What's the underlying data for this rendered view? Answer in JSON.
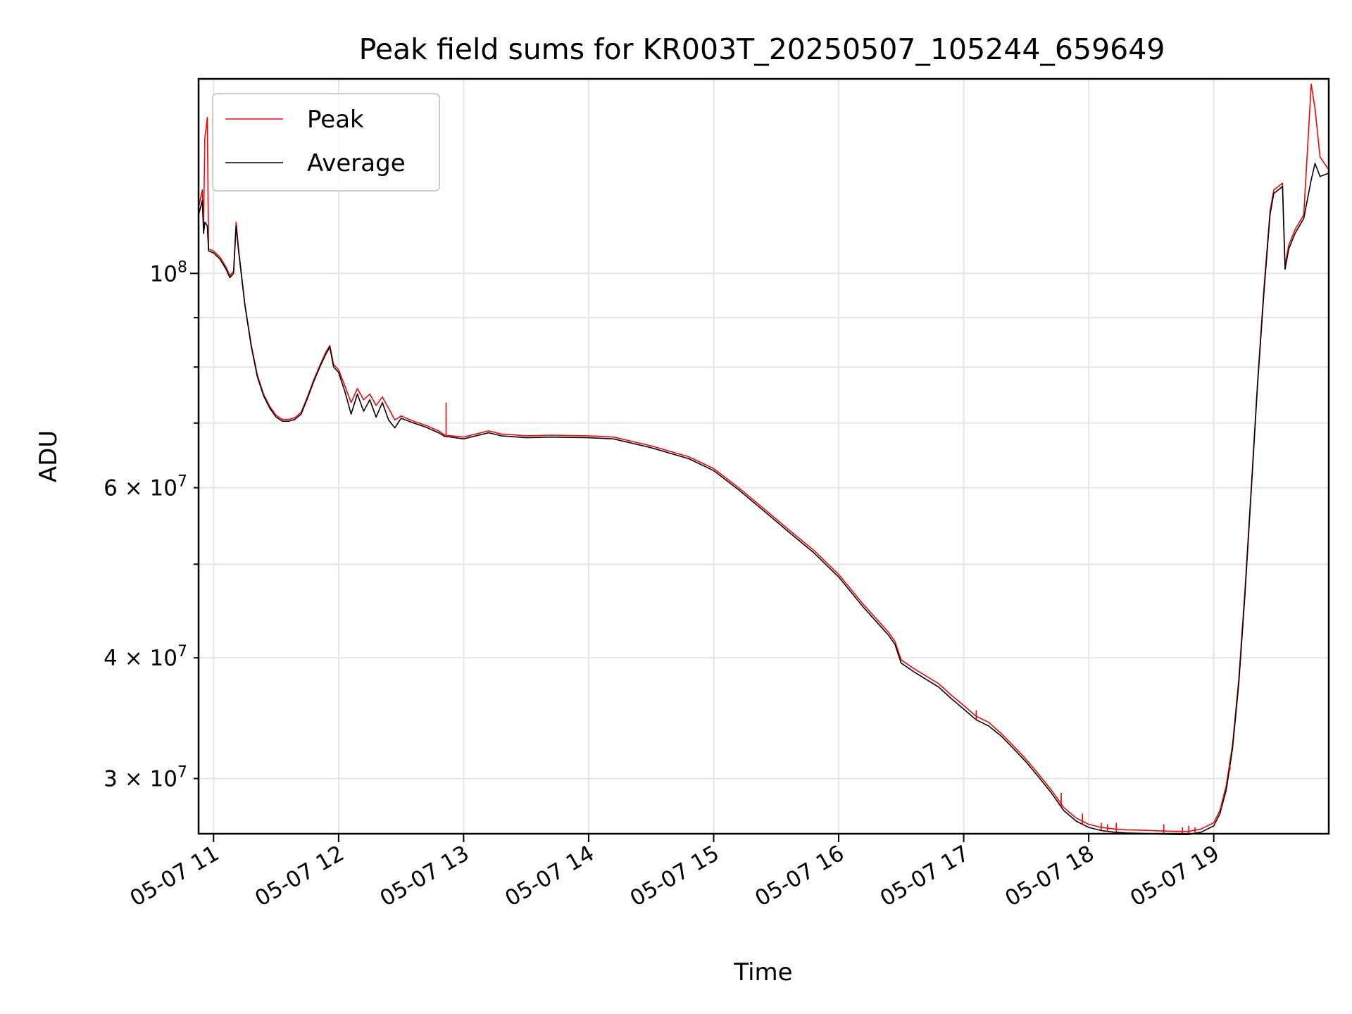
{
  "chart_data": {
    "type": "line",
    "title": "Peak field sums for KR003T_20250507_105244_659649",
    "xlabel": "Time",
    "ylabel": "ADU",
    "yscale": "log",
    "ylim": [
      26300000,
      159000000
    ],
    "xlim": [
      10.88,
      19.92
    ],
    "x_unit": "hours of 2025-05-07",
    "grid": true,
    "legend": {
      "placement": "top-left"
    },
    "x_ticks": [
      {
        "value": 11,
        "label": "05-07 11"
      },
      {
        "value": 12,
        "label": "05-07 12"
      },
      {
        "value": 13,
        "label": "05-07 13"
      },
      {
        "value": 14,
        "label": "05-07 14"
      },
      {
        "value": 15,
        "label": "05-07 15"
      },
      {
        "value": 16,
        "label": "05-07 16"
      },
      {
        "value": 17,
        "label": "05-07 17"
      },
      {
        "value": 18,
        "label": "05-07 18"
      },
      {
        "value": 19,
        "label": "05-07 19"
      }
    ],
    "y_major_ticks": [
      {
        "value": 100000000,
        "label": "10",
        "exp": "8"
      }
    ],
    "y_minor_ticks": [
      {
        "value": 30000000,
        "label": "3 × 10",
        "exp": "7"
      },
      {
        "value": 40000000,
        "label": "4 × 10",
        "exp": "7"
      },
      {
        "value": 50000000,
        "label": "",
        "exp": ""
      },
      {
        "value": 60000000,
        "label": "6 × 10",
        "exp": "7"
      },
      {
        "value": 70000000,
        "label": "",
        "exp": ""
      },
      {
        "value": 80000000,
        "label": "",
        "exp": ""
      },
      {
        "value": 90000000,
        "label": "",
        "exp": ""
      }
    ],
    "series": [
      {
        "name": "Peak",
        "color": "#ff0000",
        "points": [
          [
            10.88,
            117000000
          ],
          [
            10.91,
            122000000
          ],
          [
            10.92,
            112000000
          ],
          [
            10.93,
            138000000
          ],
          [
            10.95,
            145000000
          ],
          [
            10.96,
            106000000
          ],
          [
            11.0,
            105500000
          ],
          [
            11.05,
            104000000
          ],
          [
            11.1,
            101500000
          ],
          [
            11.13,
            99500000
          ],
          [
            11.16,
            100500000
          ],
          [
            11.18,
            113000000
          ],
          [
            11.2,
            106000000
          ],
          [
            11.25,
            93000000
          ],
          [
            11.3,
            84500000
          ],
          [
            11.35,
            78500000
          ],
          [
            11.4,
            75000000
          ],
          [
            11.45,
            72800000
          ],
          [
            11.5,
            71300000
          ],
          [
            11.55,
            70600000
          ],
          [
            11.6,
            70600000
          ],
          [
            11.65,
            70900000
          ],
          [
            11.7,
            71800000
          ],
          [
            11.75,
            74500000
          ],
          [
            11.8,
            77500000
          ],
          [
            11.85,
            80300000
          ],
          [
            11.9,
            83000000
          ],
          [
            11.93,
            84200000
          ],
          [
            11.96,
            80500000
          ],
          [
            12.0,
            79500000
          ],
          [
            12.05,
            76500000
          ],
          [
            12.1,
            73500000
          ],
          [
            12.15,
            76000000
          ],
          [
            12.2,
            74000000
          ],
          [
            12.25,
            75000000
          ],
          [
            12.3,
            73000000
          ],
          [
            12.35,
            74500000
          ],
          [
            12.4,
            72500000
          ],
          [
            12.45,
            70500000
          ],
          [
            12.5,
            71200000
          ],
          [
            12.6,
            70300000
          ],
          [
            12.7,
            69600000
          ],
          [
            12.8,
            68700000
          ],
          [
            12.85,
            68000000
          ],
          [
            12.9,
            67900000
          ],
          [
            13.0,
            67700000
          ],
          [
            13.1,
            68200000
          ],
          [
            13.2,
            68700000
          ],
          [
            13.3,
            68200000
          ],
          [
            13.5,
            67900000
          ],
          [
            13.7,
            68000000
          ],
          [
            14.0,
            67900000
          ],
          [
            14.2,
            67700000
          ],
          [
            14.5,
            66300000
          ],
          [
            14.8,
            64600000
          ],
          [
            15.0,
            62800000
          ],
          [
            15.2,
            60000000
          ],
          [
            15.4,
            57100000
          ],
          [
            15.6,
            54300000
          ],
          [
            15.8,
            51700000
          ],
          [
            16.0,
            48800000
          ],
          [
            16.2,
            45400000
          ],
          [
            16.4,
            42500000
          ],
          [
            16.45,
            41600000
          ],
          [
            16.5,
            39800000
          ],
          [
            16.6,
            39000000
          ],
          [
            16.8,
            37600000
          ],
          [
            16.9,
            36600000
          ],
          [
            17.0,
            35700000
          ],
          [
            17.1,
            34800000
          ],
          [
            17.2,
            34300000
          ],
          [
            17.3,
            33400000
          ],
          [
            17.4,
            32400000
          ],
          [
            17.5,
            31400000
          ],
          [
            17.6,
            30300000
          ],
          [
            17.7,
            29200000
          ],
          [
            17.8,
            28000000
          ],
          [
            17.9,
            27300000
          ],
          [
            18.0,
            26900000
          ],
          [
            18.1,
            26700000
          ],
          [
            18.2,
            26600000
          ],
          [
            18.3,
            26550000
          ],
          [
            18.4,
            26530000
          ],
          [
            18.5,
            26500000
          ],
          [
            18.6,
            26470000
          ],
          [
            18.7,
            26450000
          ],
          [
            18.8,
            26450000
          ],
          [
            18.9,
            26600000
          ],
          [
            19.0,
            27000000
          ],
          [
            19.05,
            27800000
          ],
          [
            19.1,
            29500000
          ],
          [
            19.15,
            32500000
          ],
          [
            19.2,
            38000000
          ],
          [
            19.25,
            47000000
          ],
          [
            19.3,
            60000000
          ],
          [
            19.35,
            77000000
          ],
          [
            19.4,
            96000000
          ],
          [
            19.45,
            116000000
          ],
          [
            19.48,
            122000000
          ],
          [
            19.55,
            124000000
          ],
          [
            19.57,
            102000000
          ],
          [
            19.6,
            107000000
          ],
          [
            19.65,
            111000000
          ],
          [
            19.72,
            115000000
          ],
          [
            19.78,
            157000000
          ],
          [
            19.81,
            148000000
          ],
          [
            19.85,
            132000000
          ],
          [
            19.92,
            128000000
          ]
        ]
      },
      {
        "name": "Average",
        "color": "#000000",
        "points": [
          [
            10.88,
            115000000
          ],
          [
            10.91,
            119000000
          ],
          [
            10.92,
            110000000
          ],
          [
            10.93,
            113000000
          ],
          [
            10.95,
            112000000
          ],
          [
            10.96,
            105500000
          ],
          [
            11.0,
            105000000
          ],
          [
            11.05,
            103500000
          ],
          [
            11.1,
            101000000
          ],
          [
            11.13,
            99000000
          ],
          [
            11.16,
            100000000
          ],
          [
            11.18,
            112000000
          ],
          [
            11.2,
            105500000
          ],
          [
            11.25,
            92800000
          ],
          [
            11.3,
            84200000
          ],
          [
            11.35,
            78200000
          ],
          [
            11.4,
            74700000
          ],
          [
            11.45,
            72500000
          ],
          [
            11.5,
            71000000
          ],
          [
            11.55,
            70300000
          ],
          [
            11.6,
            70300000
          ],
          [
            11.65,
            70600000
          ],
          [
            11.7,
            71500000
          ],
          [
            11.75,
            74200000
          ],
          [
            11.8,
            77200000
          ],
          [
            11.85,
            80000000
          ],
          [
            11.9,
            82600000
          ],
          [
            11.93,
            83900000
          ],
          [
            11.96,
            80000000
          ],
          [
            12.0,
            79000000
          ],
          [
            12.05,
            75500000
          ],
          [
            12.1,
            71500000
          ],
          [
            12.15,
            75000000
          ],
          [
            12.2,
            72000000
          ],
          [
            12.25,
            74000000
          ],
          [
            12.3,
            71000000
          ],
          [
            12.35,
            73500000
          ],
          [
            12.4,
            70500000
          ],
          [
            12.45,
            69200000
          ],
          [
            12.5,
            70800000
          ],
          [
            12.6,
            70000000
          ],
          [
            12.7,
            69300000
          ],
          [
            12.8,
            68400000
          ],
          [
            12.85,
            67800000
          ],
          [
            12.9,
            67700000
          ],
          [
            13.0,
            67400000
          ],
          [
            13.1,
            67900000
          ],
          [
            13.2,
            68400000
          ],
          [
            13.3,
            67900000
          ],
          [
            13.5,
            67600000
          ],
          [
            13.7,
            67700000
          ],
          [
            14.0,
            67600000
          ],
          [
            14.2,
            67400000
          ],
          [
            14.5,
            66000000
          ],
          [
            14.8,
            64300000
          ],
          [
            15.0,
            62500000
          ],
          [
            15.2,
            59700000
          ],
          [
            15.4,
            56800000
          ],
          [
            15.6,
            54000000
          ],
          [
            15.8,
            51400000
          ],
          [
            16.0,
            48500000
          ],
          [
            16.2,
            45100000
          ],
          [
            16.4,
            42200000
          ],
          [
            16.45,
            41300000
          ],
          [
            16.5,
            39500000
          ],
          [
            16.6,
            38700000
          ],
          [
            16.8,
            37300000
          ],
          [
            16.9,
            36300000
          ],
          [
            17.0,
            35400000
          ],
          [
            17.1,
            34500000
          ],
          [
            17.2,
            34000000
          ],
          [
            17.3,
            33200000
          ],
          [
            17.4,
            32200000
          ],
          [
            17.5,
            31200000
          ],
          [
            17.6,
            30100000
          ],
          [
            17.7,
            29000000
          ],
          [
            17.8,
            27800000
          ],
          [
            17.9,
            27100000
          ],
          [
            18.0,
            26700000
          ],
          [
            18.1,
            26500000
          ],
          [
            18.2,
            26400000
          ],
          [
            18.3,
            26350000
          ],
          [
            18.4,
            26330000
          ],
          [
            18.5,
            26300000
          ],
          [
            18.6,
            26270000
          ],
          [
            18.7,
            26250000
          ],
          [
            18.8,
            26250000
          ],
          [
            18.9,
            26400000
          ],
          [
            19.0,
            26800000
          ],
          [
            19.05,
            27600000
          ],
          [
            19.1,
            29200000
          ],
          [
            19.15,
            32200000
          ],
          [
            19.2,
            37600000
          ],
          [
            19.25,
            46500000
          ],
          [
            19.3,
            59500000
          ],
          [
            19.35,
            76500000
          ],
          [
            19.4,
            95000000
          ],
          [
            19.45,
            115000000
          ],
          [
            19.48,
            121000000
          ],
          [
            19.55,
            123000000
          ],
          [
            19.57,
            101000000
          ],
          [
            19.6,
            106000000
          ],
          [
            19.65,
            110000000
          ],
          [
            19.72,
            114000000
          ],
          [
            19.78,
            125000000
          ],
          [
            19.81,
            130000000
          ],
          [
            19.85,
            126000000
          ],
          [
            19.92,
            127000000
          ]
        ]
      }
    ],
    "spikes": {
      "name": "Peak",
      "points": [
        [
          12.86,
          73500000
        ],
        [
          17.1,
          35300000
        ],
        [
          17.78,
          29000000
        ],
        [
          17.95,
          27600000
        ],
        [
          18.1,
          27000000
        ],
        [
          18.15,
          26900000
        ],
        [
          18.22,
          27000000
        ],
        [
          18.6,
          26900000
        ],
        [
          18.75,
          26700000
        ],
        [
          18.8,
          26800000
        ],
        [
          18.85,
          26700000
        ],
        [
          19.06,
          28100000
        ],
        [
          19.13,
          30600000
        ]
      ]
    }
  }
}
